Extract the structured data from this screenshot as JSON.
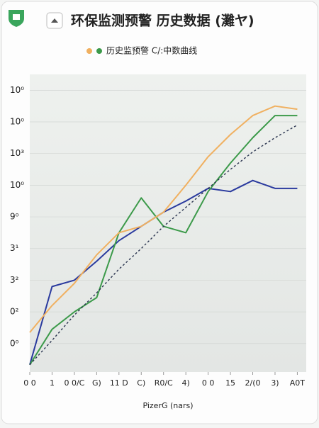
{
  "chart_data": {
    "type": "line",
    "title": "环保监测预警 历史数据 (灘ヤ)",
    "legend_text": "历史监预警 C/:中数曲线",
    "x_label": "PizerG (nars)",
    "x": [
      0,
      1,
      2,
      3,
      4,
      5,
      6,
      7,
      8,
      9,
      10,
      11,
      12
    ],
    "xlim": [
      0,
      12.4
    ],
    "xticks": [
      {
        "value": 0,
        "label": "0 0"
      },
      1,
      {
        "value": 2,
        "label": "0 0/C"
      },
      {
        "value": 3,
        "label": "G)"
      },
      {
        "value": 4,
        "label": "11 D"
      },
      {
        "value": 5,
        "label": "C)"
      },
      {
        "value": 6,
        "label": "R0/C"
      },
      {
        "value": 7,
        "label": "4)"
      },
      {
        "value": 8,
        "label": "0 0"
      },
      {
        "value": 9,
        "label": "15"
      },
      {
        "value": 10,
        "label": "2/(0"
      },
      {
        "value": 11,
        "label": "3)"
      },
      {
        "value": 12,
        "label": "A0T"
      }
    ],
    "ylim": [
      -0.9,
      8.5
    ],
    "yticks": [
      {
        "value": 0,
        "label": "0⁰"
      },
      {
        "value": 1,
        "label": "0²"
      },
      {
        "value": 2,
        "label": "3²"
      },
      {
        "value": 3,
        "label": "3¹"
      },
      {
        "value": 4,
        "label": "9⁰"
      },
      {
        "value": 5,
        "label": "10⁰"
      },
      {
        "value": 6,
        "label": "10³"
      },
      {
        "value": 7,
        "label": "10⁰"
      },
      {
        "value": 8,
        "label": "10⁰"
      }
    ],
    "grid": true,
    "series": [
      {
        "color": "#2a3a9e",
        "values": [
          -0.67,
          1.8,
          2.0,
          2.6,
          3.25,
          3.7,
          4.15,
          4.5,
          4.9,
          4.8,
          5.15,
          4.9,
          4.9
        ]
      },
      {
        "name": "C/:中数曲线",
        "color": "#3c9a4a",
        "values": [
          -0.67,
          0.45,
          1.0,
          1.45,
          3.5,
          4.6,
          3.7,
          3.5,
          4.8,
          5.7,
          6.5,
          7.2,
          7.2
        ]
      },
      {
        "name": "历史监预警",
        "color": "#f0b060",
        "values": [
          0.35,
          1.2,
          1.9,
          2.8,
          3.5,
          3.7,
          4.15,
          5.0,
          5.9,
          6.6,
          7.2,
          7.5,
          7.4
        ]
      },
      {
        "color": "#2b3550",
        "dash": true,
        "values": [
          -0.67,
          0.1,
          0.9,
          1.6,
          2.35,
          3.0,
          3.7,
          4.3,
          4.9,
          5.5,
          6.05,
          6.5,
          6.9
        ]
      }
    ]
  }
}
